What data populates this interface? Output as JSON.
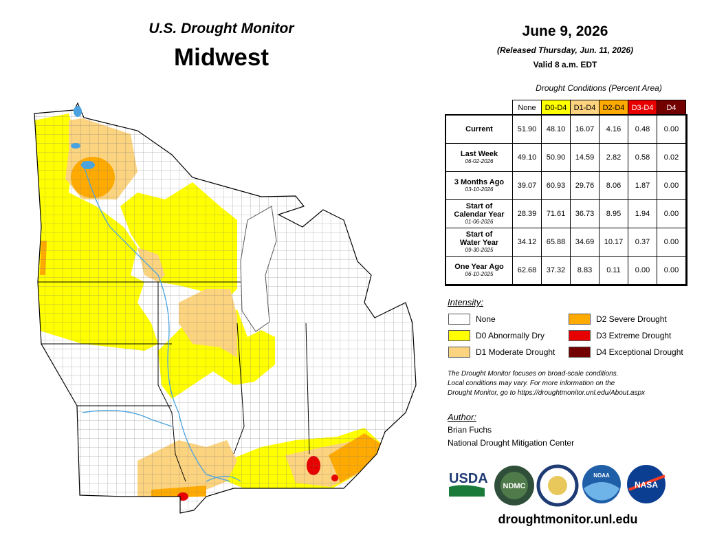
{
  "header": {
    "subtitle": "U.S. Drought Monitor",
    "title": "Midwest"
  },
  "date": {
    "date": "June 9, 2026",
    "released": "(Released Thursday, Jun. 11, 2026)",
    "valid": "Valid 8 a.m. EDT"
  },
  "table": {
    "caption": "Drought Conditions (Percent Area)",
    "columns": [
      {
        "label": "None",
        "color": "#ffffff",
        "text_color": "#000000"
      },
      {
        "label": "D0-D4",
        "color": "#ffff00",
        "text_color": "#000000"
      },
      {
        "label": "D1-D4",
        "color": "#fcd37f",
        "text_color": "#000000"
      },
      {
        "label": "D2-D4",
        "color": "#ffaa00",
        "text_color": "#000000"
      },
      {
        "label": "D3-D4",
        "color": "#e60000",
        "text_color": "#ffffff"
      },
      {
        "label": "D4",
        "color": "#730000",
        "text_color": "#ffffff"
      }
    ],
    "rows": [
      {
        "label": "Current",
        "values": [
          "51.90",
          "48.10",
          "16.07",
          "4.16",
          "0.48",
          "0.00"
        ]
      },
      {
        "label": "Last Week",
        "date": "06-02-2026",
        "values": [
          "49.10",
          "50.90",
          "14.59",
          "2.82",
          "0.58",
          "0.02"
        ]
      },
      {
        "label": "3 Months Ago",
        "date": "03-10-2026",
        "values": [
          "39.07",
          "60.93",
          "29.76",
          "8.06",
          "1.87",
          "0.00"
        ]
      },
      {
        "label": "Start of\nCalendar Year",
        "date": "01-06-2026",
        "values": [
          "28.39",
          "71.61",
          "36.73",
          "8.95",
          "1.94",
          "0.00"
        ]
      },
      {
        "label": "Start of\nWater Year",
        "date": "09-30-2025",
        "values": [
          "34.12",
          "65.88",
          "34.69",
          "10.17",
          "0.37",
          "0.00"
        ]
      },
      {
        "label": "One Year Ago",
        "date": "06-10-2025",
        "values": [
          "62.68",
          "37.32",
          "8.83",
          "0.11",
          "0.00",
          "0.00"
        ]
      }
    ]
  },
  "legend": {
    "title": "Intensity:",
    "items": [
      {
        "label": "None",
        "color": "#ffffff"
      },
      {
        "label": "D0 Abnormally Dry",
        "color": "#ffff00"
      },
      {
        "label": "D1 Moderate Drought",
        "color": "#fcd37f"
      },
      {
        "label": "D2 Severe Drought",
        "color": "#ffaa00"
      },
      {
        "label": "D3 Extreme Drought",
        "color": "#e60000"
      },
      {
        "label": "D4 Exceptional Drought",
        "color": "#730000"
      }
    ]
  },
  "note": "The Drought Monitor focuses on broad-scale conditions.\nLocal conditions may vary. For more information on the\nDrought Monitor, go to https://droughtmonitor.unl.edu/About.aspx",
  "author": {
    "heading": "Author:",
    "name": "Brian Fuchs",
    "organization": "National Drought Mitigation Center"
  },
  "logos": [
    "USDA",
    "NDMC",
    "NOAA",
    "NASA"
  ],
  "url": "droughtmonitor.unl.edu"
}
